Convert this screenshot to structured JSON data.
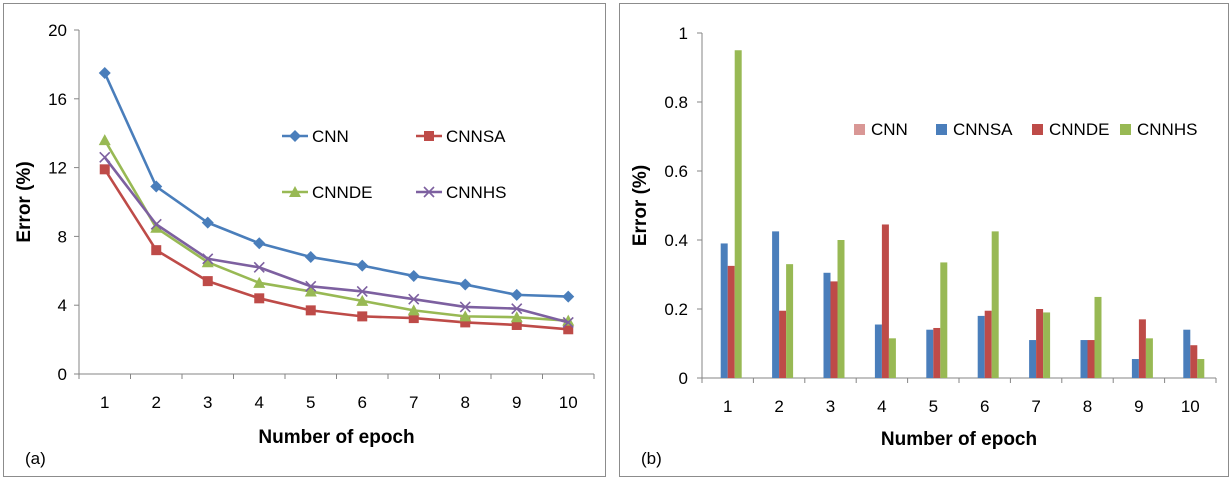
{
  "chart_data": [
    {
      "type": "line",
      "panel_label": "(a)",
      "xlabel": "Number of epoch",
      "ylabel": "Error (%)",
      "x": [
        1,
        2,
        3,
        4,
        5,
        6,
        7,
        8,
        9,
        10
      ],
      "ylim": [
        0,
        20
      ],
      "yticks": [
        "0",
        "4",
        "8",
        "12",
        "16",
        "20"
      ],
      "grid": false,
      "legend_position": "inside-center-right",
      "series": [
        {
          "name": "CNN",
          "color": "#4a7ebb",
          "marker": "diamond",
          "values": [
            17.5,
            10.9,
            8.8,
            7.6,
            6.8,
            6.3,
            5.7,
            5.2,
            4.6,
            4.5
          ]
        },
        {
          "name": "CNNSA",
          "color": "#be4b48",
          "marker": "square",
          "values": [
            11.9,
            7.2,
            5.4,
            4.4,
            3.7,
            3.35,
            3.25,
            3.0,
            2.85,
            2.6
          ]
        },
        {
          "name": "CNNDE",
          "color": "#98b954",
          "marker": "triangle",
          "values": [
            13.6,
            8.5,
            6.5,
            5.3,
            4.8,
            4.25,
            3.7,
            3.35,
            3.3,
            3.1
          ]
        },
        {
          "name": "CNNHS",
          "color": "#7d60a0",
          "marker": "x",
          "values": [
            12.6,
            8.7,
            6.7,
            6.2,
            5.1,
            4.8,
            4.35,
            3.9,
            3.8,
            3.0
          ]
        }
      ]
    },
    {
      "type": "bar",
      "panel_label": "(b)",
      "xlabel": "Number of epoch",
      "ylabel": "Error (%)",
      "categories": [
        "1",
        "2",
        "3",
        "4",
        "5",
        "6",
        "7",
        "8",
        "9",
        "10"
      ],
      "ylim": [
        0,
        1
      ],
      "yticks": [
        "0",
        "0.2",
        "0.4",
        "0.6",
        "0.8",
        "1"
      ],
      "grid": false,
      "legend_position": "inside-top-right",
      "series": [
        {
          "name": "CNN",
          "color": "#d99795",
          "values": [
            0,
            0,
            0,
            0,
            0,
            0,
            0,
            0,
            0,
            0
          ]
        },
        {
          "name": "CNNSA",
          "color": "#4a7ebb",
          "values": [
            0.39,
            0.425,
            0.305,
            0.155,
            0.14,
            0.18,
            0.11,
            0.11,
            0.055,
            0.14
          ]
        },
        {
          "name": "CNNDE",
          "color": "#be4b48",
          "values": [
            0.325,
            0.195,
            0.28,
            0.445,
            0.145,
            0.195,
            0.2,
            0.11,
            0.17,
            0.095
          ]
        },
        {
          "name": "CNNHS",
          "color": "#98b954",
          "values": [
            0.95,
            0.33,
            0.4,
            0.115,
            0.335,
            0.425,
            0.19,
            0.235,
            0.115,
            0.055
          ]
        }
      ]
    }
  ]
}
